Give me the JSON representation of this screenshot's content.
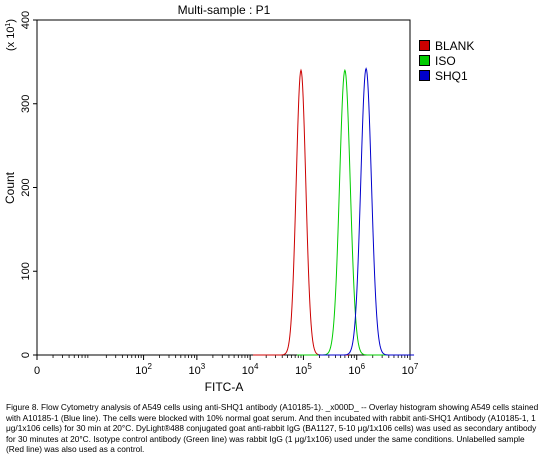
{
  "chart_data": {
    "type": "line",
    "title": "Multi-sample : P1",
    "xlabel": "FITC-A",
    "ylabel": "Count",
    "y_multiplier": "(x 10",
    "y_multiplier_exp": "1",
    "y_multiplier_close": ")",
    "xscale": "log",
    "xlim": [
      1,
      10000000
    ],
    "ylim": [
      0,
      400
    ],
    "yticks": [
      0,
      100,
      200,
      300,
      400
    ],
    "ytick_labels": [
      "0",
      "100",
      "200",
      "300",
      "400"
    ],
    "xticks": [
      {
        "value": 1,
        "base": "0",
        "exp": ""
      },
      {
        "value": 100,
        "base": "10",
        "exp": "2"
      },
      {
        "value": 1000,
        "base": "10",
        "exp": "3"
      },
      {
        "value": 10000,
        "base": "10",
        "exp": "4"
      },
      {
        "value": 100000,
        "base": "10",
        "exp": "5"
      },
      {
        "value": 1000000,
        "base": "10",
        "exp": "6"
      },
      {
        "value": 10000000,
        "base": "10",
        "exp": "7"
      }
    ],
    "legend_position": "right",
    "series": [
      {
        "name": "BLANK",
        "color": "#cc0000",
        "peak_x": 90000,
        "peak_y": 340,
        "width": 0.09
      },
      {
        "name": "ISO",
        "color": "#00cc00",
        "peak_x": 600000,
        "peak_y": 340,
        "width": 0.1
      },
      {
        "name": "SHQ1",
        "color": "#0000cc",
        "peak_x": 1500000,
        "peak_y": 342,
        "width": 0.1
      }
    ]
  },
  "caption": "Figure 8. Flow Cytometry analysis of A549 cells using anti-SHQ1 antibody (A10185-1). _x000D_ -- Overlay histogram showing A549 cells stained with A10185-1 (Blue line). The cells were blocked with 10% normal goat serum. And then incubated with rabbit anti-SHQ1 Antibody (A10185-1, 1 μg/1x106 cells) for 30 min at 20°C. DyLight®488 conjugated goat anti-rabbit IgG (BA1127, 5-10 μg/1x106 cells) was used as secondary antibody for 30 minutes at 20°C. Isotype control antibody (Green line) was rabbit IgG (1 μg/1x106) used under the same conditions. Unlabelled sample (Red line) was also used as a control."
}
